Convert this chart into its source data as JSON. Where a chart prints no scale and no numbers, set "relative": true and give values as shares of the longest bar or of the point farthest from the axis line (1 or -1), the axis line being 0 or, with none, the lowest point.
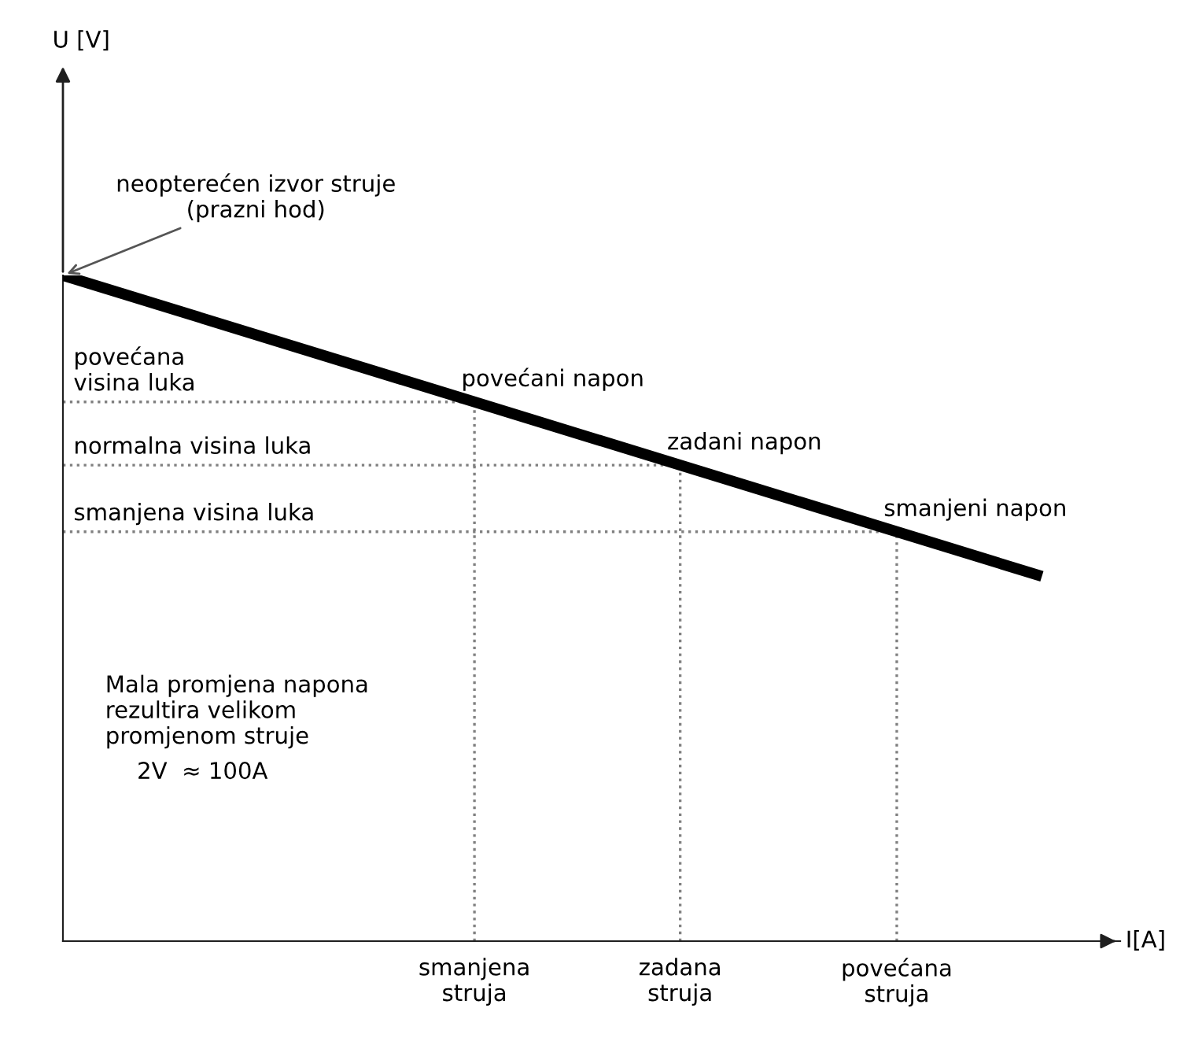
{
  "chart_data": {
    "type": "line",
    "relative": true,
    "xlabel": "I[A]",
    "categories": [
      null,
      null
    ],
    "series": [
      {
        "color": "#000000",
        "values": [
          1,
          0.548
        ]
      }
    ],
    "ref_lines": [
      {
        "axis": "y",
        "value": 0.81,
        "label": "povećana\nvisina luka",
        "line_style": "dotted",
        "color": "#808080"
      },
      {
        "axis": "y",
        "value": 0.715,
        "label": "normalna visina luka",
        "line_style": "dotted",
        "color": "#808080"
      },
      {
        "axis": "y",
        "value": 0.615,
        "label": "smanjena visina luka",
        "line_style": "dotted",
        "color": "#808080"
      }
    ],
    "annotations": [
      "neopterećen izvor struje\n(prazni hod)",
      "povećani napon",
      "zadani napon",
      "smanjeni napon",
      "smanjena\nstruja",
      "zadana\nstruja",
      "povećana\nstruja",
      "Mala promjena napona\nrezultira velikom\npromjenom struje",
      "2V  ≈ 100A",
      "U [V]"
    ],
    "legend": false,
    "line_style": "solid",
    "marker": "none"
  }
}
